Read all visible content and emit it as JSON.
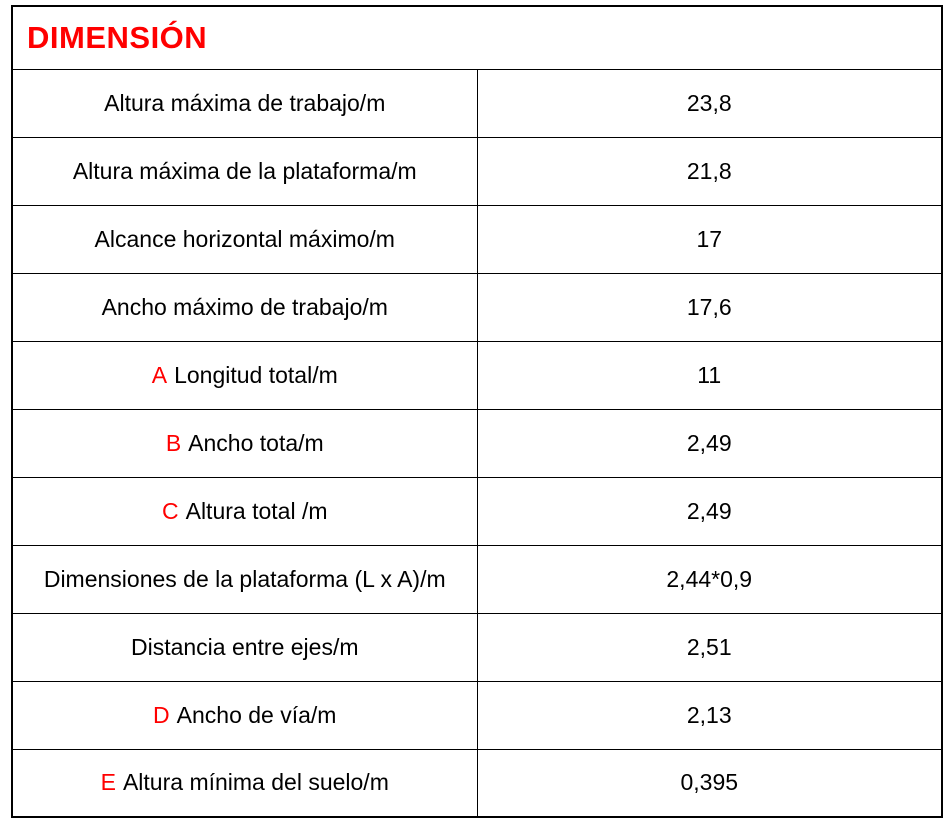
{
  "header": {
    "title": "DIMENSIÓN"
  },
  "colors": {
    "accent_red": "#ff0000",
    "text": "#000000",
    "border": "#000000",
    "background": "#ffffff"
  },
  "table": {
    "columns": [
      "label",
      "value"
    ],
    "rows": [
      {
        "label": "Altura máxima de trabajo/m",
        "value": "23,8"
      },
      {
        "label": "Altura máxima de la plataforma/m",
        "value": "21,8"
      },
      {
        "label": "Alcance horizontal máximo/m",
        "value": "17"
      },
      {
        "label": "Ancho máximo de trabajo/m",
        "value": "17,6"
      },
      {
        "prefix": "A",
        "label": "Longitud total/m",
        "value": "11"
      },
      {
        "prefix": "B",
        "label": "Ancho tota/m",
        "value": "2,49"
      },
      {
        "prefix": "C",
        "label": "Altura total /m",
        "value": "2,49"
      },
      {
        "label": "Dimensiones de la plataforma (L x A)/m",
        "value": "2,44*0,9"
      },
      {
        "label": "Distancia entre ejes/m",
        "value": "2,51"
      },
      {
        "prefix": "D",
        "label": "Ancho de vía/m",
        "value": "2,13"
      },
      {
        "prefix": "E",
        "label": "Altura mínima del suelo/m",
        "value": "0,395"
      }
    ]
  }
}
